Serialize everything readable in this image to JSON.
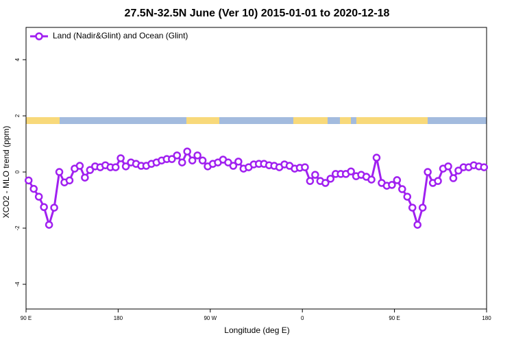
{
  "chart_data": {
    "type": "line",
    "title": "27.5N-32.5N June (Ver 10)   2015-01-01 to 2020-12-18",
    "x_label": "Longitude (deg E)",
    "y_label": "XCO2 - MLO trend (ppm)",
    "xlim": [
      90,
      540
    ],
    "ylim": [
      -4.88,
      5.15
    ],
    "xticks": [
      {
        "value": 90,
        "label": "90 E"
      },
      180,
      {
        "value": 270,
        "label": "90 W"
      },
      {
        "value": 360,
        "label": "0"
      },
      {
        "value": 450,
        "label": "90 E"
      },
      {
        "value": 540,
        "label": "180"
      }
    ],
    "yticks": [
      -4,
      -2,
      0,
      2,
      4
    ],
    "grid": false,
    "legend": "top-left",
    "series": [
      {
        "name": "Land (Nadir&Glint) and Ocean (Glint)",
        "color": "#a020f0",
        "x": [
          92.5,
          97.5,
          102.5,
          107.5,
          112.5,
          117.5,
          122.5,
          127.5,
          132.5,
          137.5,
          142.5,
          147.5,
          152.5,
          157.5,
          162.5,
          167.5,
          172.5,
          177.5,
          182.5,
          187.5,
          192.5,
          197.5,
          202.5,
          207.5,
          212.5,
          217.5,
          222.5,
          227.5,
          232.5,
          237.5,
          242.5,
          247.5,
          252.5,
          257.5,
          262.5,
          267.5,
          272.5,
          277.5,
          282.5,
          287.5,
          292.5,
          297.5,
          302.5,
          307.5,
          312.5,
          317.5,
          322.5,
          327.5,
          332.5,
          337.5,
          342.5,
          347.5,
          352.5,
          357.5,
          362.5,
          367.5,
          372.5,
          377.5,
          382.5,
          387.5,
          392.5,
          397.5,
          402.5,
          407.5,
          412.5,
          417.5,
          422.5,
          427.5,
          432.5,
          437.5,
          442.5,
          447.5,
          452.5,
          457.5,
          462.5,
          467.5,
          472.5,
          477.5,
          482.5,
          487.5,
          492.5,
          497.5,
          502.5,
          507.5,
          512.5,
          517.5,
          522.5,
          527.5,
          532.5,
          537.5
        ],
        "values": [
          -0.3,
          -0.6,
          -0.88,
          -1.25,
          -1.88,
          -1.27,
          0,
          -0.37,
          -0.3,
          0.12,
          0.22,
          -0.2,
          0.07,
          0.2,
          0.17,
          0.24,
          0.17,
          0.17,
          0.49,
          0.2,
          0.34,
          0.29,
          0.22,
          0.22,
          0.29,
          0.34,
          0.41,
          0.46,
          0.46,
          0.59,
          0.34,
          0.73,
          0.41,
          0.59,
          0.41,
          0.2,
          0.29,
          0.34,
          0.44,
          0.34,
          0.22,
          0.37,
          0.12,
          0.17,
          0.27,
          0.29,
          0.29,
          0.24,
          0.22,
          0.17,
          0.27,
          0.22,
          0.12,
          0.15,
          0.17,
          -0.32,
          -0.1,
          -0.32,
          -0.39,
          -0.24,
          -0.07,
          -0.07,
          -0.07,
          0.02,
          -0.15,
          -0.1,
          -0.17,
          -0.27,
          0.51,
          -0.39,
          -0.49,
          -0.46,
          -0.29,
          -0.61,
          -0.88,
          -1.27,
          -1.88,
          -1.27,
          0,
          -0.39,
          -0.32,
          0.12,
          0.2,
          -0.22,
          0.05,
          0.17,
          0.17,
          0.24,
          0.2,
          0.17
        ]
      }
    ]
  }
}
